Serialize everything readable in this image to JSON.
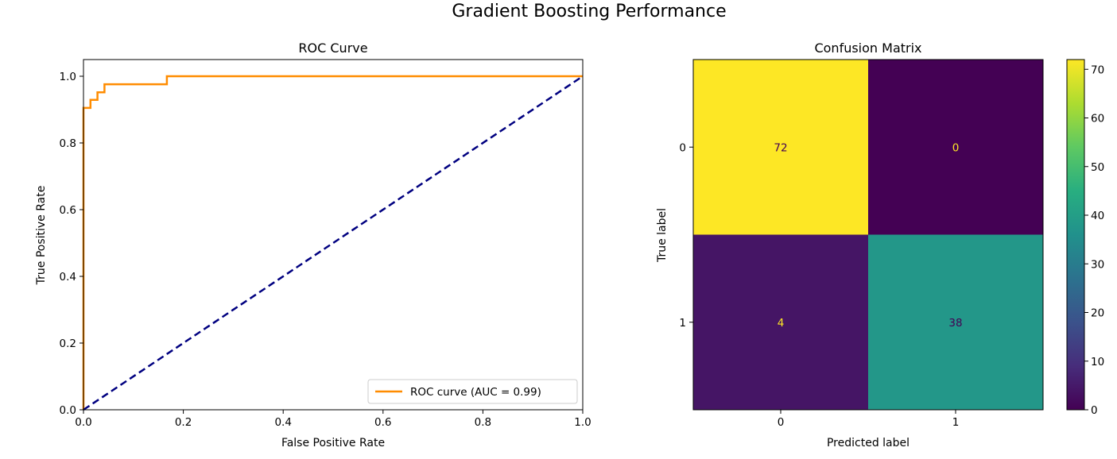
{
  "suptitle": "Gradient Boosting Performance",
  "chart_data": [
    {
      "type": "line",
      "title": "ROC Curve",
      "xlabel": "False Positive Rate",
      "ylabel": "True Positive Rate",
      "xlim": [
        0.0,
        1.0
      ],
      "ylim": [
        0.0,
        1.05
      ],
      "xticks": [
        "0.0",
        "0.2",
        "0.4",
        "0.6",
        "0.8",
        "1.0"
      ],
      "yticks": [
        "0.0",
        "0.2",
        "0.4",
        "0.6",
        "0.8",
        "1.0"
      ],
      "grid": false,
      "legend_position": "lower-right",
      "series": [
        {
          "name": "ROC curve (AUC = 0.99)",
          "color": "#ff8c00",
          "x": [
            0.0,
            0.0,
            0.014,
            0.014,
            0.028,
            0.028,
            0.042,
            0.042,
            0.167,
            0.167,
            1.0
          ],
          "y": [
            0.0,
            0.905,
            0.905,
            0.929,
            0.929,
            0.952,
            0.952,
            0.976,
            0.976,
            1.0,
            1.0
          ]
        },
        {
          "color": "#000080",
          "style": "dashed",
          "x": [
            0.0,
            1.0
          ],
          "y": [
            0.0,
            1.0
          ]
        }
      ]
    },
    {
      "type": "heatmap",
      "title": "Confusion Matrix",
      "xlabel": "Predicted label",
      "ylabel": "True label",
      "x_categories": [
        "0",
        "1"
      ],
      "y_categories": [
        "0",
        "1"
      ],
      "values": [
        [
          72,
          0
        ],
        [
          4,
          38
        ]
      ],
      "colormap": "viridis",
      "colorbar": {
        "min": 0,
        "max": 72,
        "ticks": [
          "0",
          "10",
          "20",
          "30",
          "40",
          "50",
          "60",
          "70"
        ]
      }
    }
  ]
}
